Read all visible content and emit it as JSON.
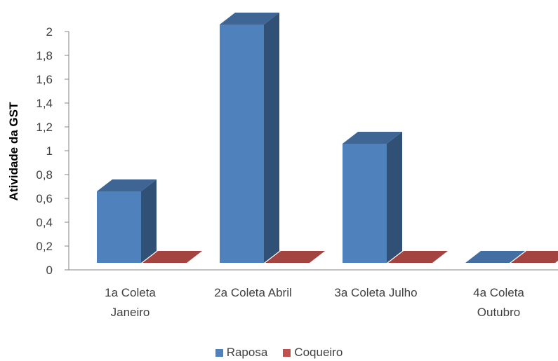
{
  "chart_data": {
    "type": "bar",
    "title": "",
    "xlabel": "",
    "ylabel": "Atividade da GST",
    "categories": [
      [
        "1a Coleta",
        "Janeiro"
      ],
      [
        "2a Coleta Abril"
      ],
      [
        "3a Coleta Julho"
      ],
      [
        "4a Coleta",
        "Outubro"
      ]
    ],
    "series": [
      {
        "name": "Raposa",
        "values": [
          0.6,
          2.0,
          1.0,
          0.0
        ],
        "color": "#4F81BD"
      },
      {
        "name": "Coqueiro",
        "values": [
          0.0,
          0.0,
          0.0,
          0.0
        ],
        "color": "#C0504D"
      }
    ],
    "ylim": [
      0,
      2
    ],
    "yticks": [
      "0",
      "0,2",
      "0,4",
      "0,6",
      "0,8",
      "1",
      "1,2",
      "1,4",
      "1,6",
      "1,8",
      "2"
    ],
    "grid": false,
    "legend_position": "bottom",
    "style": "3d-column"
  }
}
